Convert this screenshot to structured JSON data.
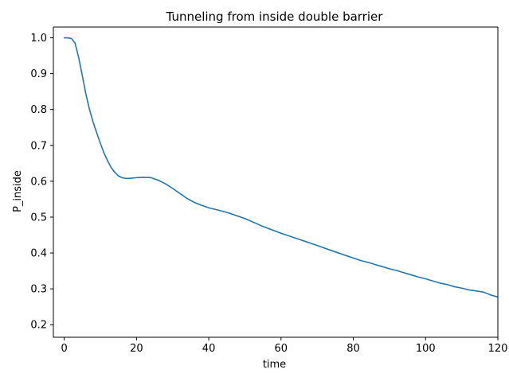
{
  "chart_data": {
    "type": "line",
    "title": "Tunneling from inside double barrier",
    "xlabel": "time",
    "ylabel": "P_inside",
    "xlim": [
      -3,
      120
    ],
    "ylim": [
      0.165,
      1.03
    ],
    "x_ticks": [
      0,
      20,
      40,
      60,
      80,
      100,
      120
    ],
    "y_ticks": [
      0.2,
      0.3,
      0.4,
      0.5,
      0.6,
      0.7,
      0.8,
      0.9,
      1.0
    ],
    "grid": false,
    "line_color": "#1f77b4",
    "series": [
      {
        "x": [
          0,
          1,
          2,
          3,
          4,
          5,
          6,
          7,
          8,
          9,
          10,
          11,
          12,
          13,
          14,
          15,
          16,
          17,
          18,
          20,
          22,
          24,
          26,
          28,
          30,
          32,
          34,
          36,
          38,
          40,
          42,
          44,
          46,
          48,
          50,
          55,
          60,
          65,
          70,
          75,
          80,
          82,
          84,
          86,
          88,
          90,
          92,
          94,
          96,
          98,
          100,
          102,
          104,
          106,
          108,
          110,
          112,
          114,
          116,
          118,
          120
        ],
        "y": [
          1.0,
          1.0,
          0.998,
          0.985,
          0.945,
          0.895,
          0.843,
          0.8,
          0.765,
          0.735,
          0.706,
          0.679,
          0.657,
          0.638,
          0.625,
          0.615,
          0.61,
          0.608,
          0.608,
          0.61,
          0.611,
          0.61,
          0.603,
          0.593,
          0.58,
          0.566,
          0.552,
          0.541,
          0.533,
          0.526,
          0.521,
          0.516,
          0.51,
          0.503,
          0.496,
          0.474,
          0.455,
          0.438,
          0.421,
          0.403,
          0.386,
          0.379,
          0.374,
          0.368,
          0.362,
          0.356,
          0.351,
          0.345,
          0.339,
          0.333,
          0.328,
          0.322,
          0.316,
          0.312,
          0.306,
          0.302,
          0.297,
          0.294,
          0.291,
          0.283,
          0.277
        ]
      }
    ]
  }
}
